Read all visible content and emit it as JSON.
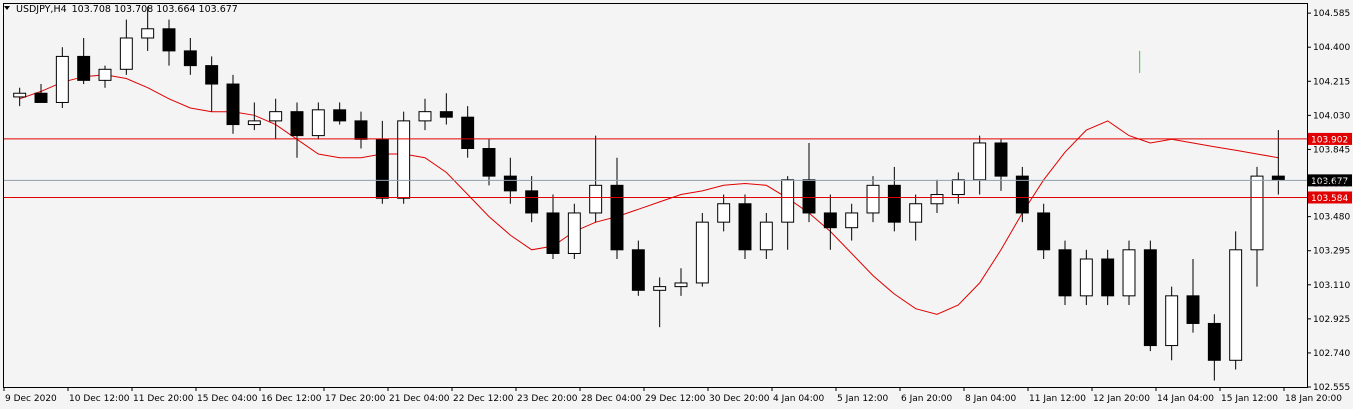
{
  "header": {
    "symbol_label": "USDJPY,H4",
    "ohlc": "103.708 103.708 103.664 103.677"
  },
  "colors": {
    "background": "#f4f4f4",
    "frame": "#000000",
    "bull_body": "#ffffff",
    "bear_body": "#000000",
    "ma_line": "#e00000",
    "level_line": "#e00000",
    "level_tag": "#e00000",
    "price_line": "#8fa0b0",
    "price_tag": "#000000",
    "arrow": "#2ecc40"
  },
  "chart_data": {
    "type": "candlestick",
    "instrument": "USDJPY",
    "timeframe": "H4",
    "ylim": [
      102.555,
      104.64
    ],
    "y_ticks": [
      "104.585",
      "104.400",
      "104.215",
      "104.030",
      "103.845",
      "103.660",
      "103.480",
      "103.295",
      "103.110",
      "102.925",
      "102.740",
      "102.555"
    ],
    "x_ticks": [
      "9 Dec 2020",
      "10 Dec 12:00",
      "11 Dec 20:00",
      "15 Dec 04:00",
      "16 Dec 12:00",
      "17 Dec 20:00",
      "21 Dec 04:00",
      "22 Dec 12:00",
      "23 Dec 20:00",
      "28 Dec 04:00",
      "29 Dec 12:00",
      "30 Dec 20:00",
      "4 Jan 04:00",
      "5 Jan 12:00",
      "6 Jan 20:00",
      "8 Jan 04:00",
      "11 Jan 12:00",
      "12 Jan 20:00",
      "14 Jan 04:00",
      "15 Jan 12:00",
      "18 Jan 20:00"
    ],
    "current_price": "103.677",
    "levels": [
      "103.902",
      "103.584"
    ],
    "indicator": "moving average",
    "ma": [
      104.12,
      104.16,
      104.21,
      104.24,
      104.25,
      104.23,
      104.18,
      104.12,
      104.07,
      104.05,
      104.05,
      104.03,
      103.98,
      103.9,
      103.82,
      103.8,
      103.8,
      103.82,
      103.82,
      103.8,
      103.72,
      103.6,
      103.48,
      103.38,
      103.3,
      103.32,
      103.4,
      103.45,
      103.48,
      103.52,
      103.56,
      103.6,
      103.62,
      103.65,
      103.66,
      103.65,
      103.58,
      103.5,
      103.4,
      103.28,
      103.16,
      103.06,
      102.98,
      102.95,
      103.0,
      103.12,
      103.3,
      103.5,
      103.68,
      103.83,
      103.95,
      104.0,
      103.92,
      103.88,
      103.9,
      103.88,
      103.86,
      103.84,
      103.82,
      103.8
    ],
    "candles": [
      {
        "o": 104.13,
        "h": 104.18,
        "l": 104.08,
        "c": 104.15
      },
      {
        "o": 104.15,
        "h": 104.2,
        "l": 104.1,
        "c": 104.1
      },
      {
        "o": 104.1,
        "h": 104.4,
        "l": 104.07,
        "c": 104.35
      },
      {
        "o": 104.35,
        "h": 104.45,
        "l": 104.2,
        "c": 104.22
      },
      {
        "o": 104.22,
        "h": 104.3,
        "l": 104.18,
        "c": 104.28
      },
      {
        "o": 104.28,
        "h": 104.55,
        "l": 104.25,
        "c": 104.45
      },
      {
        "o": 104.45,
        "h": 104.62,
        "l": 104.38,
        "c": 104.5
      },
      {
        "o": 104.5,
        "h": 104.55,
        "l": 104.3,
        "c": 104.38
      },
      {
        "o": 104.38,
        "h": 104.45,
        "l": 104.25,
        "c": 104.3
      },
      {
        "o": 104.3,
        "h": 104.35,
        "l": 104.05,
        "c": 104.2
      },
      {
        "o": 104.2,
        "h": 104.25,
        "l": 103.93,
        "c": 103.98
      },
      {
        "o": 103.98,
        "h": 104.1,
        "l": 103.95,
        "c": 104.0
      },
      {
        "o": 104.0,
        "h": 104.12,
        "l": 103.9,
        "c": 104.05
      },
      {
        "o": 104.05,
        "h": 104.1,
        "l": 103.8,
        "c": 103.92
      },
      {
        "o": 103.92,
        "h": 104.1,
        "l": 103.9,
        "c": 104.06
      },
      {
        "o": 104.06,
        "h": 104.1,
        "l": 103.98,
        "c": 104.0
      },
      {
        "o": 104.0,
        "h": 104.05,
        "l": 103.85,
        "c": 103.9
      },
      {
        "o": 103.9,
        "h": 104.0,
        "l": 103.55,
        "c": 103.58
      },
      {
        "o": 103.58,
        "h": 104.05,
        "l": 103.55,
        "c": 104.0
      },
      {
        "o": 104.0,
        "h": 104.12,
        "l": 103.95,
        "c": 104.05
      },
      {
        "o": 104.05,
        "h": 104.15,
        "l": 103.98,
        "c": 104.02
      },
      {
        "o": 104.02,
        "h": 104.08,
        "l": 103.8,
        "c": 103.85
      },
      {
        "o": 103.85,
        "h": 103.9,
        "l": 103.65,
        "c": 103.7
      },
      {
        "o": 103.7,
        "h": 103.8,
        "l": 103.55,
        "c": 103.62
      },
      {
        "o": 103.62,
        "h": 103.7,
        "l": 103.45,
        "c": 103.5
      },
      {
        "o": 103.5,
        "h": 103.6,
        "l": 103.25,
        "c": 103.28
      },
      {
        "o": 103.28,
        "h": 103.55,
        "l": 103.25,
        "c": 103.5
      },
      {
        "o": 103.5,
        "h": 103.92,
        "l": 103.45,
        "c": 103.65
      },
      {
        "o": 103.65,
        "h": 103.8,
        "l": 103.25,
        "c": 103.3
      },
      {
        "o": 103.3,
        "h": 103.35,
        "l": 103.05,
        "c": 103.08
      },
      {
        "o": 103.08,
        "h": 103.15,
        "l": 102.88,
        "c": 103.1
      },
      {
        "o": 103.1,
        "h": 103.2,
        "l": 103.05,
        "c": 103.12
      },
      {
        "o": 103.12,
        "h": 103.5,
        "l": 103.1,
        "c": 103.45
      },
      {
        "o": 103.45,
        "h": 103.6,
        "l": 103.4,
        "c": 103.55
      },
      {
        "o": 103.55,
        "h": 103.6,
        "l": 103.25,
        "c": 103.3
      },
      {
        "o": 103.3,
        "h": 103.5,
        "l": 103.25,
        "c": 103.45
      },
      {
        "o": 103.45,
        "h": 103.7,
        "l": 103.3,
        "c": 103.68
      },
      {
        "o": 103.68,
        "h": 103.88,
        "l": 103.45,
        "c": 103.5
      },
      {
        "o": 103.5,
        "h": 103.6,
        "l": 103.3,
        "c": 103.42
      },
      {
        "o": 103.42,
        "h": 103.55,
        "l": 103.35,
        "c": 103.5
      },
      {
        "o": 103.5,
        "h": 103.7,
        "l": 103.45,
        "c": 103.65
      },
      {
        "o": 103.65,
        "h": 103.75,
        "l": 103.4,
        "c": 103.45
      },
      {
        "o": 103.45,
        "h": 103.6,
        "l": 103.35,
        "c": 103.55
      },
      {
        "o": 103.55,
        "h": 103.68,
        "l": 103.5,
        "c": 103.6
      },
      {
        "o": 103.6,
        "h": 103.72,
        "l": 103.55,
        "c": 103.68
      },
      {
        "o": 103.68,
        "h": 103.92,
        "l": 103.6,
        "c": 103.88
      },
      {
        "o": 103.88,
        "h": 103.9,
        "l": 103.62,
        "c": 103.7
      },
      {
        "o": 103.7,
        "h": 103.75,
        "l": 103.45,
        "c": 103.5
      },
      {
        "o": 103.5,
        "h": 103.55,
        "l": 103.25,
        "c": 103.3
      },
      {
        "o": 103.3,
        "h": 103.35,
        "l": 103.0,
        "c": 103.05
      },
      {
        "o": 103.05,
        "h": 103.3,
        "l": 103.0,
        "c": 103.25
      },
      {
        "o": 103.25,
        "h": 103.3,
        "l": 103.0,
        "c": 103.05
      },
      {
        "o": 103.05,
        "h": 103.35,
        "l": 103.0,
        "c": 103.3
      },
      {
        "o": 103.3,
        "h": 103.35,
        "l": 102.75,
        "c": 102.78
      },
      {
        "o": 102.78,
        "h": 103.1,
        "l": 102.7,
        "c": 103.05
      },
      {
        "o": 103.05,
        "h": 103.25,
        "l": 102.85,
        "c": 102.9
      },
      {
        "o": 102.9,
        "h": 102.95,
        "l": 102.59,
        "c": 102.7
      },
      {
        "o": 102.7,
        "h": 103.4,
        "l": 102.65,
        "c": 103.3
      },
      {
        "o": 103.3,
        "h": 103.75,
        "l": 103.1,
        "c": 103.7
      },
      {
        "o": 103.7,
        "h": 103.95,
        "l": 103.6,
        "c": 103.68
      }
    ]
  }
}
